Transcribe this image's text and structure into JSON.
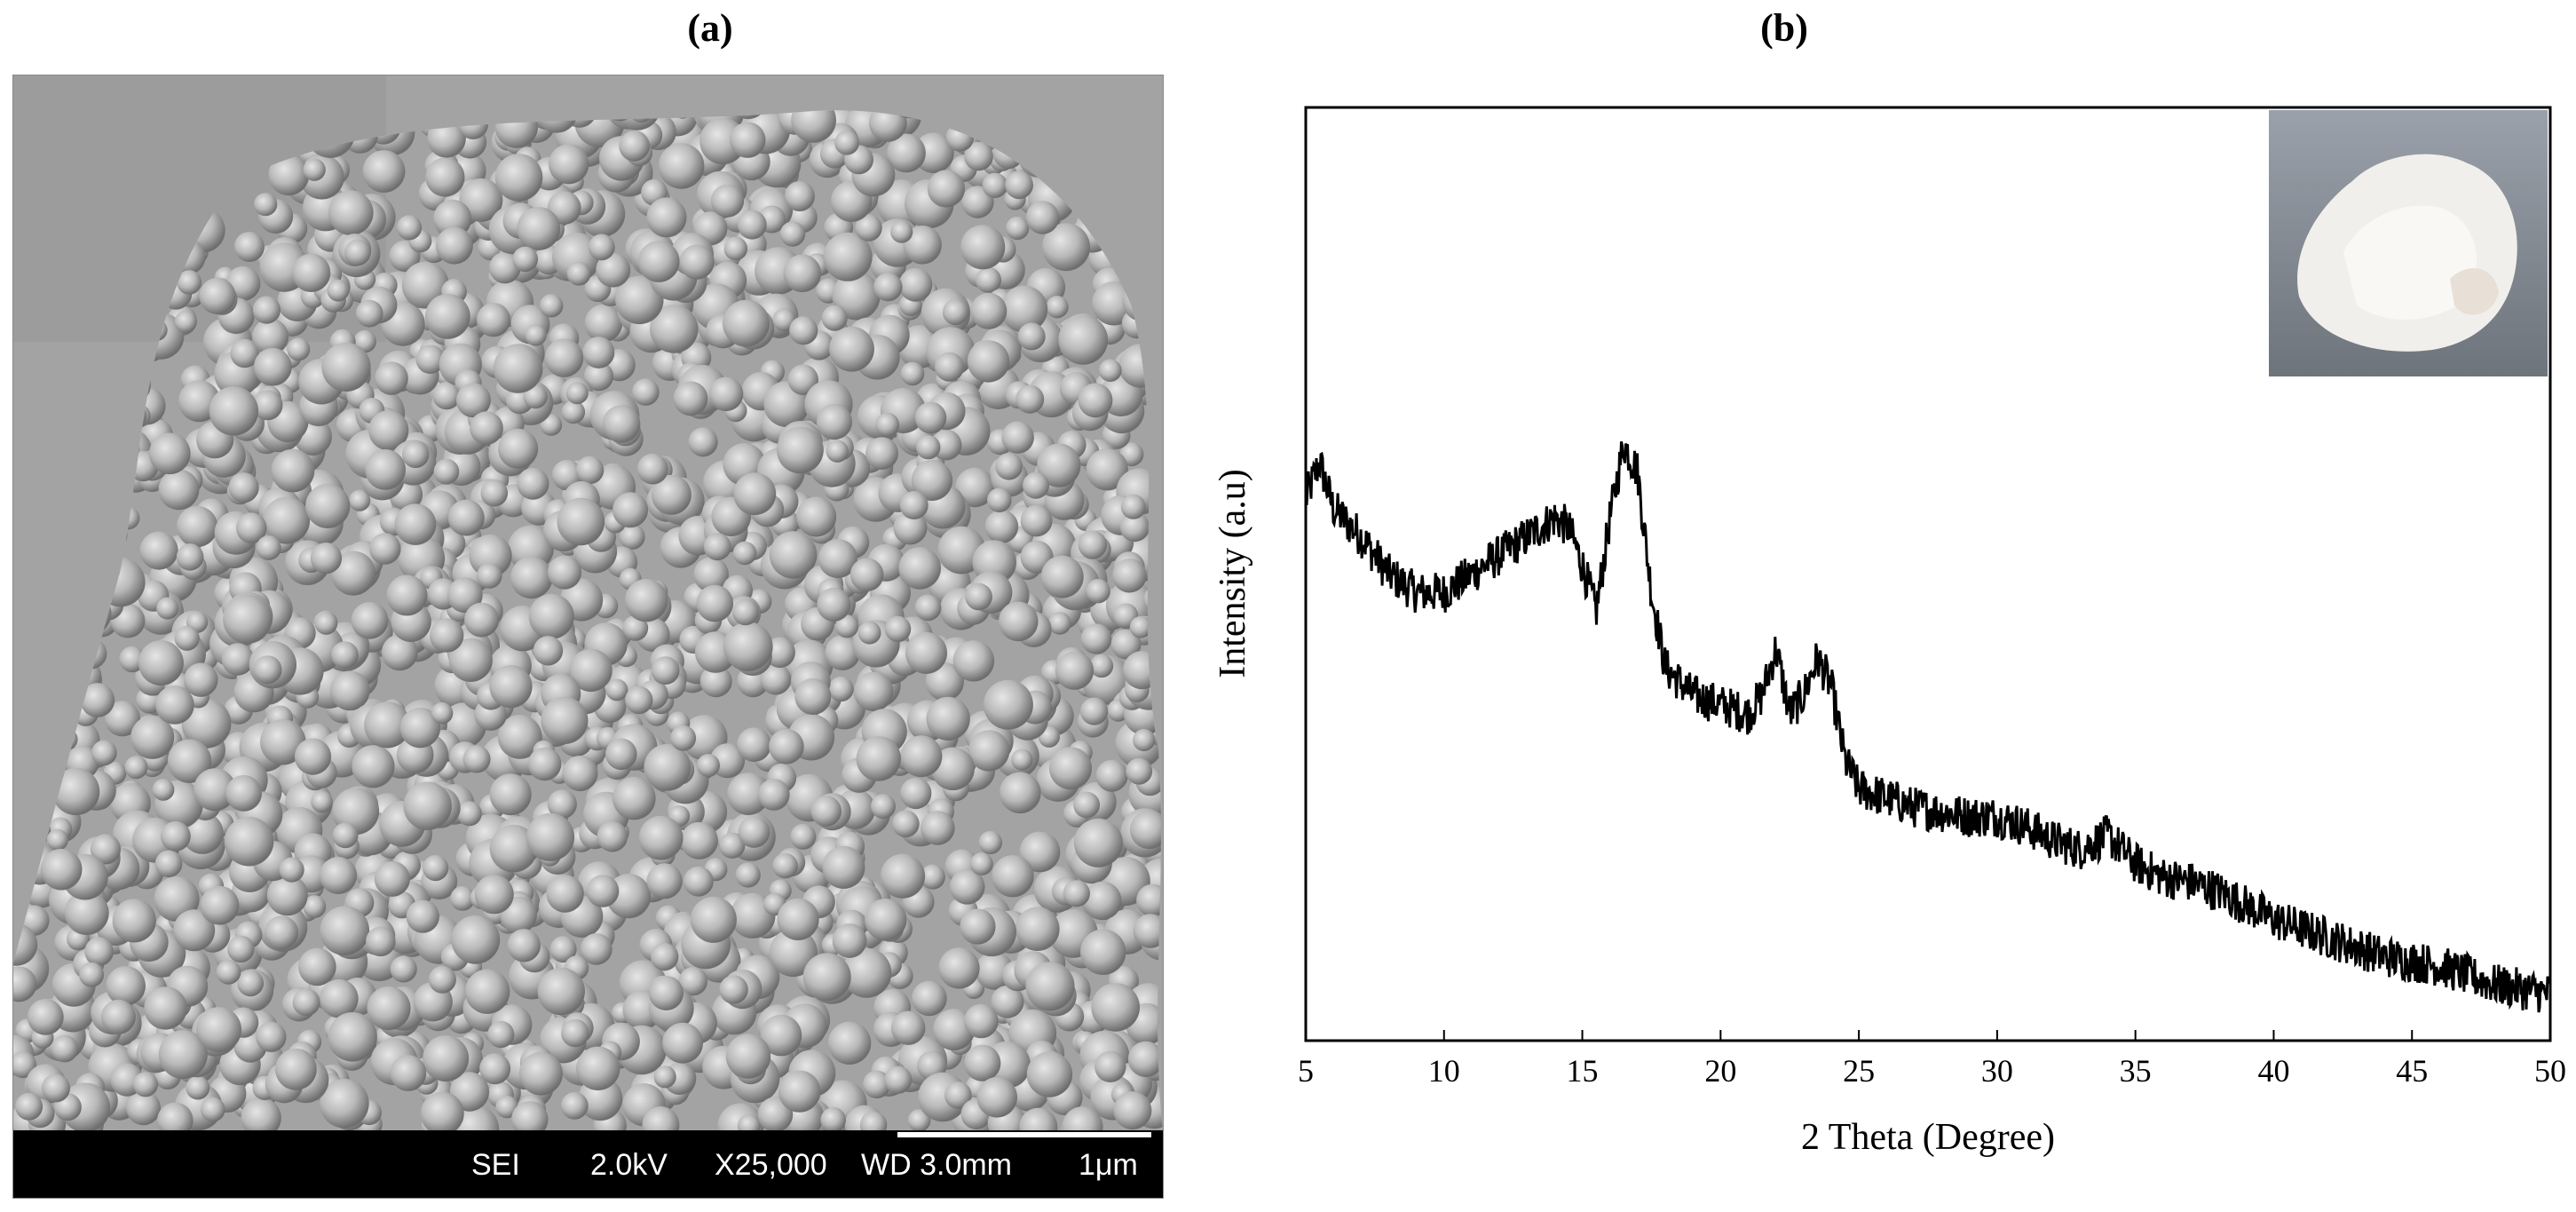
{
  "panels": {
    "a": {
      "label": "(a)"
    },
    "b": {
      "label": "(b)"
    }
  },
  "sem": {
    "mode": "SEI",
    "voltage": "2.0kV",
    "magnification": "X25,000",
    "working_distance": "WD 3.0mm",
    "scale": "1μm"
  },
  "chart_data": {
    "type": "line",
    "xlabel": "2 Theta (Degree)",
    "ylabel": "Intensity (a.u)",
    "xlim": [
      5,
      50
    ],
    "ylim": [
      0,
      100
    ],
    "x_ticks": [
      "5",
      "10",
      "15",
      "20",
      "25",
      "30",
      "35",
      "40",
      "45",
      "50"
    ],
    "y_tick_labels": false,
    "grid": false,
    "legend": "none",
    "inset": "photo of white powder, top-right",
    "series": [
      {
        "color": "#000000",
        "x": [
          5,
          5.5,
          6,
          7,
          8,
          9,
          10,
          11,
          12,
          13,
          14,
          14.5,
          15,
          15.5,
          16,
          16.5,
          17,
          17.5,
          18,
          19,
          20,
          21,
          21.5,
          22,
          22.5,
          23,
          23.5,
          24,
          24.5,
          25,
          26,
          27,
          28,
          29,
          30,
          31,
          32,
          33,
          34,
          35,
          36,
          37,
          38,
          39,
          40,
          41,
          42,
          43,
          44,
          45,
          46,
          47,
          48,
          49,
          50
        ],
        "values": [
          58,
          62,
          57,
          54,
          50,
          48,
          48,
          50,
          52,
          54,
          56,
          55,
          51,
          46,
          56,
          64,
          61,
          48,
          40,
          37,
          36,
          35,
          37,
          42,
          35,
          37,
          41,
          38,
          30,
          27,
          26,
          25,
          24.5,
          24,
          24,
          23,
          21.5,
          20.5,
          22,
          19,
          17.5,
          17,
          16,
          14.5,
          13,
          12,
          11,
          10,
          9,
          8.5,
          8,
          7,
          6,
          5.5,
          5
        ]
      }
    ]
  }
}
